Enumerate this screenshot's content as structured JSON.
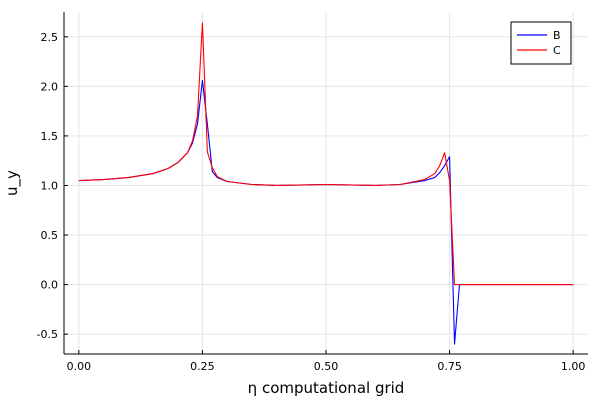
{
  "chart_data": {
    "type": "line",
    "title": "",
    "xlabel": "η computational grid",
    "ylabel": "u_y",
    "xlim": [
      -0.03,
      1.03
    ],
    "ylim": [
      -0.7,
      2.75
    ],
    "xticks": [
      0.0,
      0.25,
      0.5,
      0.75,
      1.0
    ],
    "xtick_labels": [
      "0.00",
      "0.25",
      "0.50",
      "0.75",
      "1.00"
    ],
    "yticks": [
      -0.5,
      0.0,
      0.5,
      1.0,
      1.5,
      2.0,
      2.5
    ],
    "ytick_labels": [
      "-0.5",
      "0.0",
      "0.5",
      "1.0",
      "1.5",
      "2.0",
      "2.5"
    ],
    "grid": true,
    "legend_position": "top-right",
    "series": [
      {
        "name": "B",
        "color": "#0000ff",
        "x": [
          0.0,
          0.05,
          0.1,
          0.15,
          0.18,
          0.2,
          0.22,
          0.23,
          0.24,
          0.25,
          0.26,
          0.27,
          0.28,
          0.3,
          0.35,
          0.4,
          0.5,
          0.6,
          0.65,
          0.7,
          0.72,
          0.73,
          0.74,
          0.75,
          0.76,
          0.77,
          0.78,
          1.0
        ],
        "y": [
          1.05,
          1.06,
          1.08,
          1.12,
          1.17,
          1.23,
          1.33,
          1.43,
          1.62,
          2.06,
          1.62,
          1.14,
          1.08,
          1.04,
          1.01,
          1.0,
          1.01,
          1.0,
          1.01,
          1.05,
          1.08,
          1.13,
          1.2,
          1.29,
          -0.6,
          0.0,
          0.0,
          0.0
        ]
      },
      {
        "name": "C",
        "color": "#ff0000",
        "x": [
          0.0,
          0.05,
          0.1,
          0.15,
          0.18,
          0.2,
          0.22,
          0.23,
          0.24,
          0.25,
          0.26,
          0.27,
          0.28,
          0.3,
          0.35,
          0.4,
          0.5,
          0.6,
          0.65,
          0.7,
          0.72,
          0.73,
          0.74,
          0.75,
          0.76,
          0.77,
          0.78,
          1.0
        ],
        "y": [
          1.05,
          1.06,
          1.08,
          1.12,
          1.17,
          1.23,
          1.33,
          1.45,
          1.7,
          2.64,
          1.34,
          1.18,
          1.09,
          1.04,
          1.01,
          1.0,
          1.01,
          1.0,
          1.01,
          1.06,
          1.12,
          1.2,
          1.33,
          1.05,
          0.0,
          0.0,
          0.0,
          0.0
        ]
      }
    ]
  }
}
